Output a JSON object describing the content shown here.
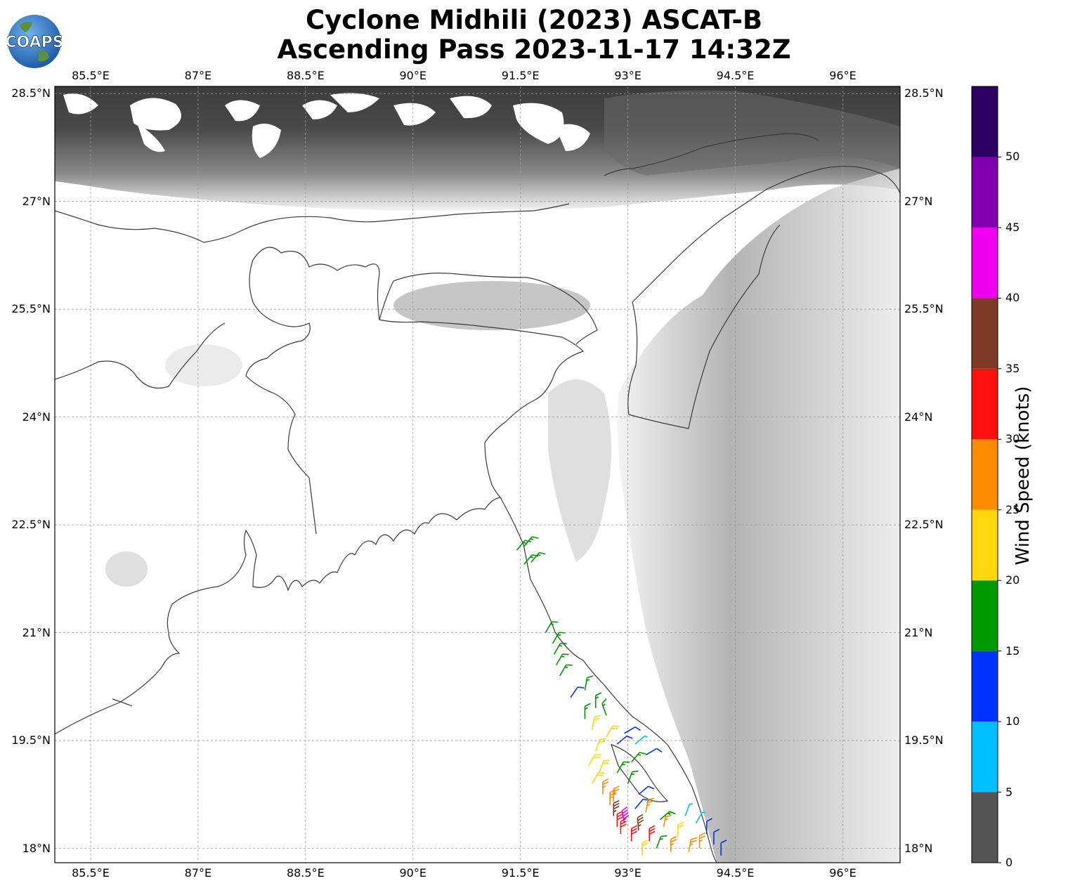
{
  "title": {
    "line1": "Cyclone Midhili (2023) ASCAT-B",
    "line2": "Ascending Pass 2023-11-17 14:32Z"
  },
  "logo": {
    "text": "COAPS"
  },
  "map": {
    "lon_range": [
      85.0,
      96.8
    ],
    "lat_range": [
      17.8,
      28.6
    ],
    "lon_ticks": [
      "85.5°E",
      "87°E",
      "88.5°E",
      "90°E",
      "91.5°E",
      "93°E",
      "94.5°E",
      "96°E"
    ],
    "lat_ticks": [
      "28.5°N",
      "27°N",
      "25.5°N",
      "24°N",
      "22.5°N",
      "21°N",
      "19.5°N",
      "18°N"
    ],
    "lon_tick_values": [
      85.5,
      87,
      88.5,
      90,
      91.5,
      93,
      94.5,
      96
    ],
    "lat_tick_values": [
      28.5,
      27,
      25.5,
      24,
      22.5,
      21,
      19.5,
      18
    ]
  },
  "colorbar": {
    "label": "Wind Speed (knots)",
    "ticks": [
      "0",
      "5",
      "10",
      "15",
      "20",
      "25",
      "30",
      "35",
      "40",
      "45",
      "50"
    ],
    "bins": [
      {
        "min": 0,
        "max": 5,
        "color": "#555555"
      },
      {
        "min": 5,
        "max": 10,
        "color": "#00bfff"
      },
      {
        "min": 10,
        "max": 15,
        "color": "#0033ff"
      },
      {
        "min": 15,
        "max": 20,
        "color": "#009900"
      },
      {
        "min": 20,
        "max": 25,
        "color": "#ffd70f"
      },
      {
        "min": 25,
        "max": 30,
        "color": "#ff8c00"
      },
      {
        "min": 30,
        "max": 35,
        "color": "#ff1010"
      },
      {
        "min": 35,
        "max": 40,
        "color": "#7f3b26"
      },
      {
        "min": 40,
        "max": 45,
        "color": "#ee00ee"
      },
      {
        "min": 45,
        "max": 50,
        "color": "#8000b0"
      },
      {
        "min": 50,
        "max": 55,
        "color": "#2c0063"
      }
    ]
  }
}
